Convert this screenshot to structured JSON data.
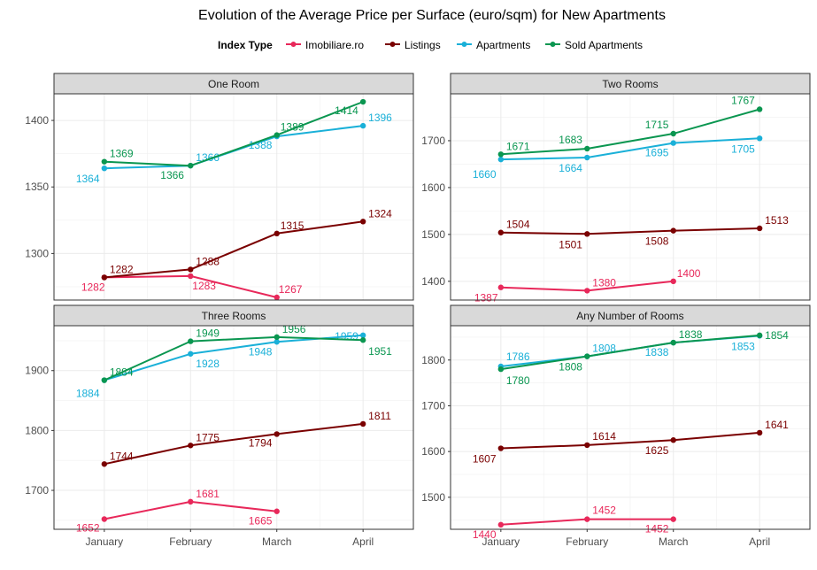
{
  "chart_data": {
    "type": "line",
    "title": "Evolution of the Average Price per Surface (euro/sqm) for New Apartments",
    "legend": {
      "title": "Index Type",
      "position": "top",
      "entries": [
        {
          "name": "Imobiliare.ro",
          "color": "#e8285a"
        },
        {
          "name": "Listings",
          "color": "#7a0000"
        },
        {
          "name": "Apartments",
          "color": "#1ab0d8"
        },
        {
          "name": "Sold Apartments",
          "color": "#0a9650"
        }
      ]
    },
    "categories": [
      "January",
      "February",
      "March",
      "April"
    ],
    "grid": true,
    "panels": [
      {
        "name": "One Room",
        "ylim": [
          1265,
          1420
        ],
        "yticks": [
          "1300",
          "1350",
          "1400"
        ],
        "series": [
          {
            "name": "Imobiliare.ro",
            "values": [
              1282,
              1283,
              1267,
              null
            ],
            "labels": [
              "1282",
              "1283",
              "1267",
              ""
            ]
          },
          {
            "name": "Listings",
            "values": [
              1282,
              1288,
              1315,
              1324
            ],
            "labels": [
              "1282",
              "1288",
              "1315",
              "1324"
            ]
          },
          {
            "name": "Apartments",
            "values": [
              1364,
              1366,
              1388,
              1396
            ],
            "labels": [
              "1364",
              "1366",
              "1388",
              "1396"
            ]
          },
          {
            "name": "Sold Apartments",
            "values": [
              1369,
              1366,
              1389,
              1414
            ],
            "labels": [
              "1369",
              "1366",
              "1389",
              "1414"
            ]
          }
        ]
      },
      {
        "name": "Two Rooms",
        "ylim": [
          1360,
          1800
        ],
        "yticks": [
          "1400",
          "1500",
          "1600",
          "1700"
        ],
        "series": [
          {
            "name": "Imobiliare.ro",
            "values": [
              1387,
              1380,
              1400,
              null
            ],
            "labels": [
              "1387",
              "1380",
              "1400",
              ""
            ]
          },
          {
            "name": "Listings",
            "values": [
              1504,
              1501,
              1508,
              1513
            ],
            "labels": [
              "1504",
              "1501",
              "1508",
              "1513"
            ]
          },
          {
            "name": "Apartments",
            "values": [
              1660,
              1664,
              1695,
              1705
            ],
            "labels": [
              "1660",
              "1664",
              "1695",
              "1705"
            ]
          },
          {
            "name": "Sold Apartments",
            "values": [
              1671,
              1683,
              1715,
              1767
            ],
            "labels": [
              "1671",
              "1683",
              "1715",
              "1767"
            ]
          }
        ]
      },
      {
        "name": "Three Rooms",
        "ylim": [
          1635,
          1975
        ],
        "yticks": [
          "1700",
          "1800",
          "1900"
        ],
        "series": [
          {
            "name": "Imobiliare.ro",
            "values": [
              1652,
              1681,
              1665,
              null
            ],
            "labels": [
              "1652",
              "1681",
              "1665",
              ""
            ]
          },
          {
            "name": "Listings",
            "values": [
              1744,
              1775,
              1794,
              1811
            ],
            "labels": [
              "1744",
              "1775",
              "1794",
              "1811"
            ]
          },
          {
            "name": "Apartments",
            "values": [
              1884,
              1928,
              1948,
              1959
            ],
            "labels": [
              "1884",
              "1928",
              "1948",
              "1959"
            ]
          },
          {
            "name": "Sold Apartments",
            "values": [
              1884,
              1949,
              1956,
              1951
            ],
            "labels": [
              "1884",
              "1949",
              "1956",
              "1951"
            ]
          }
        ]
      },
      {
        "name": "Any Number of Rooms",
        "ylim": [
          1430,
          1875
        ],
        "yticks": [
          "1500",
          "1600",
          "1700",
          "1800"
        ],
        "series": [
          {
            "name": "Imobiliare.ro",
            "values": [
              1440,
              1452,
              1452,
              null
            ],
            "labels": [
              "1440",
              "1452",
              "1452",
              ""
            ]
          },
          {
            "name": "Listings",
            "values": [
              1607,
              1614,
              1625,
              1641
            ],
            "labels": [
              "1607",
              "1614",
              "1625",
              "1641"
            ]
          },
          {
            "name": "Apartments",
            "values": [
              1786,
              1808,
              1838,
              1853
            ],
            "labels": [
              "1786",
              "1808",
              "1838",
              "1853"
            ]
          },
          {
            "name": "Sold Apartments",
            "values": [
              1780,
              1808,
              1838,
              1854
            ],
            "labels": [
              "1780",
              "1808",
              "1838",
              "1854"
            ]
          }
        ]
      }
    ]
  }
}
